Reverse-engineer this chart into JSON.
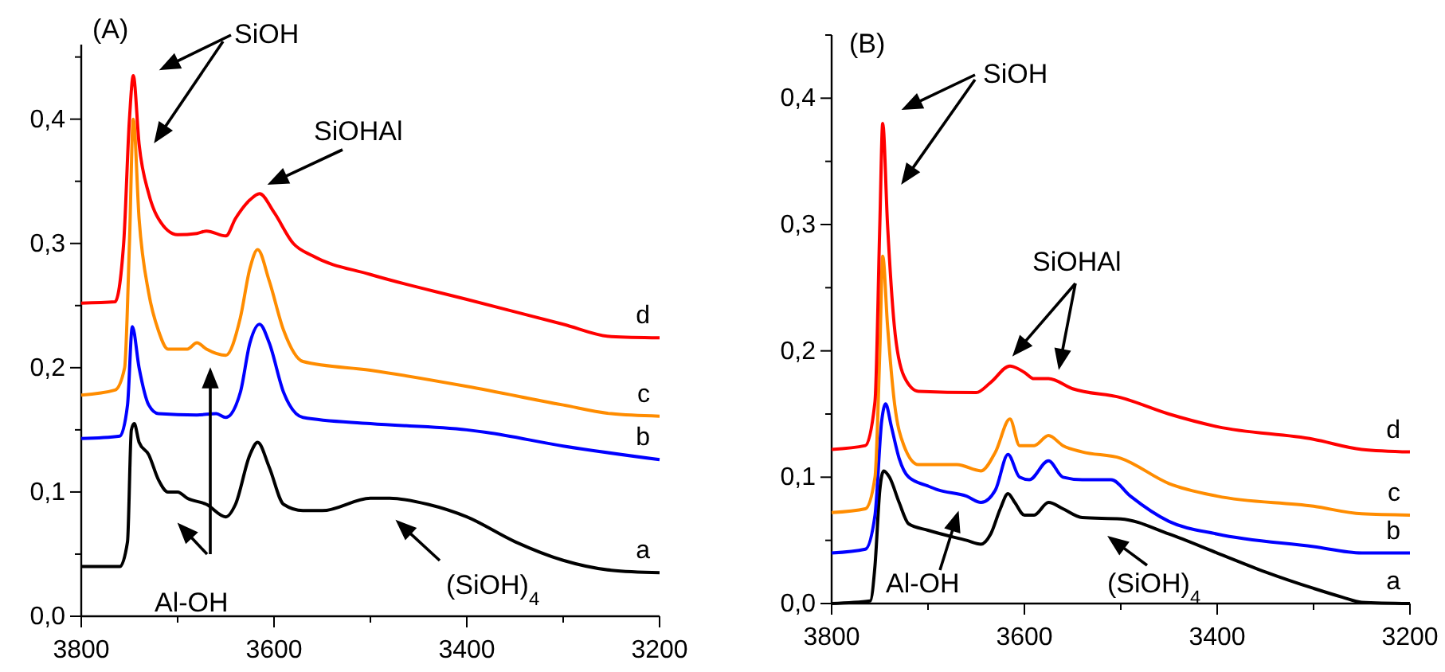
{
  "chart_data": [
    {
      "type": "line",
      "xlim": [
        3800,
        3200
      ],
      "ylim": [
        0,
        0.46
      ],
      "xticks": [
        3800,
        {
          "value": 3700,
          "label": null
        },
        3600,
        {
          "value": 3500,
          "label": null
        },
        3400,
        {
          "value": 3300,
          "label": null
        },
        3200
      ],
      "yticks": [
        {
          "value": 0,
          "label": "0,0"
        },
        {
          "value": 0.05,
          "label": null
        },
        {
          "value": 0.1,
          "label": "0,1"
        },
        {
          "value": 0.15,
          "label": null
        },
        {
          "value": 0.2,
          "label": "0,2"
        },
        {
          "value": 0.25,
          "label": null
        },
        {
          "value": 0.3,
          "label": "0,3"
        },
        {
          "value": 0.35,
          "label": null
        },
        {
          "value": 0.4,
          "label": "0,4"
        },
        {
          "value": 0.45,
          "label": null
        }
      ],
      "annotations": [
        "(A)",
        "SiOH",
        "SiOHAl",
        "Al-OH",
        "(SiOH)$_{4}$"
      ],
      "series": [
        {
          "name": "a",
          "color": "#000000",
          "x": [
            3800,
            3760,
            3752,
            3748,
            3745,
            3740,
            3730,
            3720,
            3710,
            3700,
            3690,
            3670,
            3650,
            3640,
            3625,
            3617,
            3605,
            3590,
            3570,
            3550,
            3500,
            3480,
            3440,
            3400,
            3350,
            3300,
            3250,
            3200
          ],
          "values": [
            0.04,
            0.04,
            0.06,
            0.15,
            0.155,
            0.14,
            0.13,
            0.11,
            0.1,
            0.1,
            0.095,
            0.09,
            0.08,
            0.09,
            0.13,
            0.14,
            0.12,
            0.09,
            0.085,
            0.085,
            0.095,
            0.095,
            0.09,
            0.08,
            0.06,
            0.045,
            0.037,
            0.035
          ]
        },
        {
          "name": "b",
          "color": "#0000ff",
          "x": [
            3800,
            3760,
            3752,
            3747,
            3740,
            3730,
            3720,
            3680,
            3660,
            3650,
            3635,
            3625,
            3615,
            3605,
            3590,
            3570,
            3500,
            3400,
            3380,
            3300,
            3200
          ],
          "values": [
            0.143,
            0.145,
            0.17,
            0.233,
            0.2,
            0.17,
            0.163,
            0.162,
            0.163,
            0.16,
            0.18,
            0.22,
            0.235,
            0.22,
            0.18,
            0.16,
            0.155,
            0.15,
            0.148,
            0.137,
            0.126
          ]
        },
        {
          "name": "c",
          "color": "#ff8c00",
          "x": [
            3800,
            3765,
            3755,
            3750,
            3746,
            3740,
            3730,
            3720,
            3710,
            3690,
            3680,
            3670,
            3650,
            3635,
            3625,
            3617,
            3605,
            3590,
            3570,
            3500,
            3400,
            3300,
            3250,
            3200
          ],
          "values": [
            0.178,
            0.182,
            0.2,
            0.3,
            0.4,
            0.32,
            0.26,
            0.23,
            0.215,
            0.215,
            0.22,
            0.215,
            0.21,
            0.24,
            0.28,
            0.295,
            0.27,
            0.23,
            0.205,
            0.198,
            0.185,
            0.17,
            0.163,
            0.161
          ]
        },
        {
          "name": "d",
          "color": "#ff0000",
          "x": [
            3800,
            3765,
            3756,
            3750,
            3746,
            3740,
            3730,
            3720,
            3700,
            3680,
            3670,
            3650,
            3640,
            3625,
            3615,
            3600,
            3580,
            3560,
            3500,
            3400,
            3300,
            3250,
            3200
          ],
          "values": [
            0.252,
            0.253,
            0.3,
            0.4,
            0.435,
            0.38,
            0.34,
            0.32,
            0.307,
            0.308,
            0.31,
            0.306,
            0.32,
            0.335,
            0.34,
            0.325,
            0.3,
            0.29,
            0.275,
            0.255,
            0.235,
            0.225,
            0.224
          ]
        }
      ]
    },
    {
      "type": "line",
      "xlim": [
        3800,
        3200
      ],
      "ylim": [
        0,
        0.45
      ],
      "xticks": [
        3800,
        {
          "value": 3700,
          "label": null
        },
        3600,
        {
          "value": 3500,
          "label": null
        },
        3400,
        {
          "value": 3300,
          "label": null
        },
        3200
      ],
      "yticks": [
        {
          "value": 0,
          "label": "0,0"
        },
        {
          "value": 0.05,
          "label": null
        },
        {
          "value": 0.1,
          "label": "0,1"
        },
        {
          "value": 0.15,
          "label": null
        },
        {
          "value": 0.2,
          "label": "0,2"
        },
        {
          "value": 0.25,
          "label": null
        },
        {
          "value": 0.3,
          "label": "0,3"
        },
        {
          "value": 0.35,
          "label": null
        },
        {
          "value": 0.4,
          "label": "0,4"
        },
        {
          "value": 0.45,
          "label": null
        }
      ],
      "annotations": [
        "(B)",
        "SiOH",
        "SiOHAl",
        "Al-OH",
        "(SiOH)$_{4}$"
      ],
      "series": [
        {
          "name": "a",
          "color": "#000000",
          "x": [
            3800,
            3760,
            3755,
            3750,
            3746,
            3740,
            3730,
            3720,
            3700,
            3660,
            3645,
            3635,
            3625,
            3617,
            3610,
            3600,
            3590,
            3575,
            3560,
            3540,
            3500,
            3450,
            3400,
            3350,
            3300,
            3270,
            3250,
            3200
          ],
          "values": [
            0,
            0.002,
            0.03,
            0.09,
            0.105,
            0.1,
            0.08,
            0.063,
            0.058,
            0.05,
            0.047,
            0.055,
            0.075,
            0.087,
            0.08,
            0.07,
            0.07,
            0.08,
            0.075,
            0.068,
            0.067,
            0.055,
            0.04,
            0.025,
            0.012,
            0.005,
            0.001,
            0
          ]
        },
        {
          "name": "b",
          "color": "#0000ff",
          "x": [
            3800,
            3765,
            3755,
            3748,
            3744,
            3738,
            3730,
            3720,
            3700,
            3690,
            3660,
            3645,
            3630,
            3617,
            3605,
            3595,
            3575,
            3560,
            3540,
            3510,
            3490,
            3450,
            3400,
            3300,
            3250,
            3200
          ],
          "values": [
            0.04,
            0.043,
            0.07,
            0.145,
            0.158,
            0.14,
            0.115,
            0.1,
            0.093,
            0.09,
            0.085,
            0.08,
            0.09,
            0.118,
            0.1,
            0.098,
            0.113,
            0.1,
            0.098,
            0.098,
            0.085,
            0.065,
            0.055,
            0.045,
            0.04,
            0.04
          ]
        },
        {
          "name": "c",
          "color": "#ff8c00",
          "x": [
            3800,
            3765,
            3755,
            3750,
            3747,
            3742,
            3735,
            3725,
            3710,
            3670,
            3645,
            3630,
            3615,
            3605,
            3590,
            3575,
            3560,
            3540,
            3500,
            3450,
            3400,
            3300,
            3250,
            3200
          ],
          "values": [
            0.072,
            0.075,
            0.1,
            0.2,
            0.275,
            0.22,
            0.16,
            0.125,
            0.11,
            0.11,
            0.105,
            0.12,
            0.146,
            0.125,
            0.125,
            0.133,
            0.125,
            0.12,
            0.115,
            0.095,
            0.085,
            0.077,
            0.071,
            0.07
          ]
        },
        {
          "name": "d",
          "color": "#ff0000",
          "x": [
            3800,
            3765,
            3755,
            3750,
            3747,
            3742,
            3735,
            3725,
            3710,
            3650,
            3635,
            3615,
            3600,
            3590,
            3575,
            3550,
            3500,
            3450,
            3400,
            3300,
            3250,
            3200
          ],
          "values": [
            0.122,
            0.125,
            0.16,
            0.3,
            0.38,
            0.3,
            0.22,
            0.18,
            0.168,
            0.167,
            0.175,
            0.188,
            0.183,
            0.178,
            0.178,
            0.17,
            0.163,
            0.15,
            0.14,
            0.13,
            0.122,
            0.12
          ]
        }
      ]
    }
  ]
}
